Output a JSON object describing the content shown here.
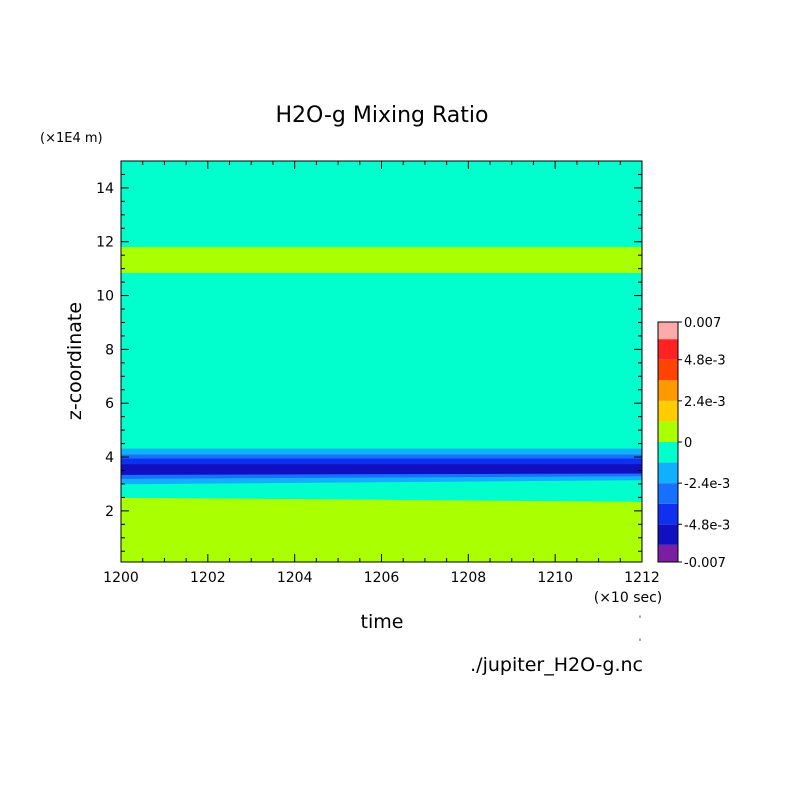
{
  "chart_data": {
    "type": "heatmap",
    "title": "H2O-g Mixing Ratio",
    "xlabel": "time",
    "ylabel": "z-coordinate",
    "x_unit_label": "(×10 sec)",
    "y_unit_label": "(×1E4 m)",
    "xlim": [
      1200,
      1212
    ],
    "ylim": [
      0.1,
      15
    ],
    "x_ticks": [
      1200,
      1202,
      1204,
      1206,
      1208,
      1210,
      1212
    ],
    "y_ticks": [
      2,
      4,
      6,
      8,
      10,
      12,
      14
    ],
    "x_tick_labels": [
      "1200",
      "1202",
      "1204",
      "1206",
      "1208",
      "1210",
      "1212"
    ],
    "y_tick_labels": [
      "2",
      "4",
      "6",
      "8",
      "10",
      "12",
      "14"
    ],
    "source_label": "./jupiter_H2O-g.nc",
    "colorbar": {
      "levels": [
        -0.007,
        -0.006,
        -0.0048,
        -0.0036,
        -0.0024,
        -0.0012,
        0,
        0.0012,
        0.0024,
        0.0036,
        0.0048,
        0.006,
        0.007
      ],
      "colors": [
        "#7b1fa2",
        "#1010c0",
        "#1030f0",
        "#1870ff",
        "#10b0ff",
        "#00ffcc",
        "#aaff00",
        "#ffcc00",
        "#ff9900",
        "#ff4400",
        "#ff2222",
        "#ffaaaa"
      ],
      "tick_labels": [
        "-0.007",
        "-4.8e-3",
        "-2.4e-3",
        "0",
        "2.4e-3",
        "4.8e-3",
        "0.007"
      ],
      "tick_values": [
        -0.007,
        -0.0048,
        -0.0024,
        0,
        0.0024,
        0.0048,
        0.007
      ]
    },
    "background_color": "#00ffcc",
    "bands": [
      {
        "color": "#aaff00",
        "y_bottom_start": 0.1,
        "y_top_start": 2.5,
        "y_bottom_end": 0.1,
        "y_top_end": 2.35
      },
      {
        "color": "#00ffcc",
        "y_bottom_start": 2.5,
        "y_top_start": 3.0,
        "y_bottom_end": 2.35,
        "y_top_end": 3.15
      },
      {
        "color": "#10b0ff",
        "y_bottom_start": 3.0,
        "y_top_start": 3.2,
        "y_bottom_end": 3.15,
        "y_top_end": 3.3
      },
      {
        "color": "#1870ff",
        "y_bottom_start": 3.2,
        "y_top_start": 3.35,
        "y_bottom_end": 3.3,
        "y_top_end": 3.4
      },
      {
        "color": "#1010c0",
        "y_bottom_start": 3.35,
        "y_top_start": 3.75,
        "y_bottom_end": 3.4,
        "y_top_end": 3.75
      },
      {
        "color": "#1030f0",
        "y_bottom_start": 3.75,
        "y_top_start": 3.95,
        "y_bottom_end": 3.75,
        "y_top_end": 3.95
      },
      {
        "color": "#1870ff",
        "y_bottom_start": 3.95,
        "y_top_start": 4.1,
        "y_bottom_end": 3.95,
        "y_top_end": 4.1
      },
      {
        "color": "#10b0ff",
        "y_bottom_start": 4.1,
        "y_top_start": 4.3,
        "y_bottom_end": 4.1,
        "y_top_end": 4.3
      },
      {
        "color": "#aaff00",
        "y_bottom_start": 10.85,
        "y_top_start": 11.8,
        "y_bottom_end": 10.85,
        "y_top_end": 11.8
      }
    ]
  }
}
